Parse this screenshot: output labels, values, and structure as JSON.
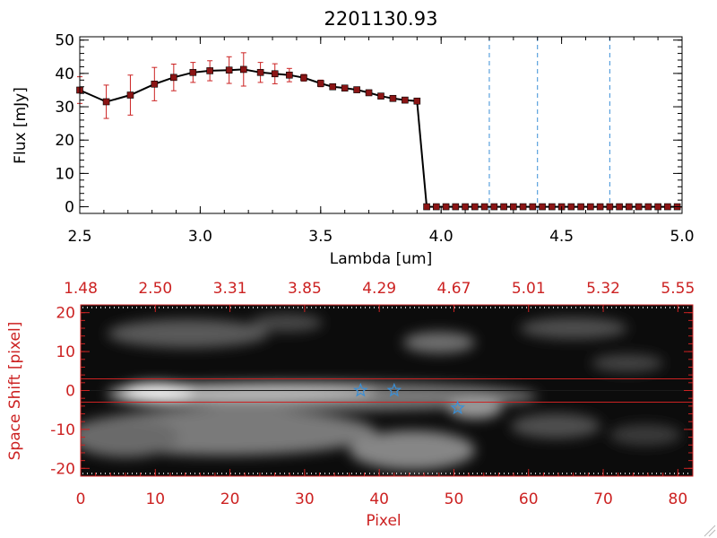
{
  "colors": {
    "red": "#cc2222",
    "black": "#000000",
    "blue": "#3a8fd6"
  },
  "chart_data": [
    {
      "type": "line",
      "title": "2201130.93",
      "xlabel": "Lambda [um]",
      "ylabel": "Flux [mJy]",
      "xlim": [
        2.5,
        5.0
      ],
      "ylim": [
        -2,
        51
      ],
      "xticks": [
        "2.5",
        "3.0",
        "3.5",
        "4.0",
        "4.5",
        "5.0"
      ],
      "yticks": [
        "0",
        "10",
        "20",
        "30",
        "40",
        "50"
      ],
      "series": [
        {
          "name": "flux",
          "x": [
            2.5,
            2.61,
            2.71,
            2.81,
            2.89,
            2.97,
            3.04,
            3.12,
            3.18,
            3.25,
            3.31,
            3.37,
            3.43,
            3.5,
            3.55,
            3.6,
            3.65,
            3.7,
            3.75,
            3.8,
            3.85,
            3.9,
            3.94,
            3.98,
            4.02,
            4.06,
            4.1,
            4.14,
            4.18,
            4.22,
            4.26,
            4.3,
            4.34,
            4.38,
            4.42,
            4.46,
            4.5,
            4.54,
            4.58,
            4.62,
            4.66,
            4.7,
            4.74,
            4.78,
            4.82,
            4.86,
            4.9,
            4.94,
            4.98
          ],
          "y": [
            35,
            31.5,
            33.5,
            36.8,
            38.8,
            40.3,
            40.8,
            41.0,
            41.2,
            40.3,
            39.9,
            39.5,
            38.7,
            37.0,
            36.0,
            35.6,
            35.1,
            34.2,
            33.2,
            32.5,
            32.0,
            31.7,
            0,
            0,
            0,
            0,
            0,
            0,
            0,
            0,
            0,
            0,
            0,
            0,
            0,
            0,
            0,
            0,
            0,
            0,
            0,
            0,
            0,
            0,
            0,
            0,
            0,
            0,
            0
          ],
          "yerr": [
            4,
            5,
            6,
            5,
            4,
            3,
            3,
            4,
            5,
            3,
            3,
            2,
            1,
            1,
            0.5,
            0.5,
            0.5,
            0.5,
            0.5,
            0.5,
            0.5,
            0.5,
            0,
            0,
            0,
            0,
            0,
            0,
            0,
            0,
            0,
            0,
            0,
            0,
            0,
            0,
            0,
            0,
            0,
            0,
            0,
            0,
            0,
            0,
            0,
            0,
            0,
            0,
            0
          ]
        }
      ],
      "vlines_x": [
        4.2,
        4.4,
        4.7
      ]
    },
    {
      "type": "heatmap",
      "xlabel": "Pixel",
      "ylabel": "Space Shift [pixel]",
      "xlim": [
        0,
        82
      ],
      "ylim": [
        -22,
        22
      ],
      "xticks": [
        "0",
        "10",
        "20",
        "30",
        "40",
        "50",
        "60",
        "70",
        "80"
      ],
      "yticks": [
        "20",
        "10",
        "0",
        "-10",
        "-20"
      ],
      "top_ticks": [
        "1.48",
        "2.50",
        "3.31",
        "3.85",
        "4.29",
        "4.67",
        "5.01",
        "5.32",
        "5.55"
      ],
      "hlines_y": [
        3,
        -3
      ],
      "center_line_y": 0,
      "stars": [
        {
          "x": 37.5,
          "y": 0
        },
        {
          "x": 42,
          "y": 0
        },
        {
          "x": 50.5,
          "y": -4.5
        }
      ]
    }
  ]
}
